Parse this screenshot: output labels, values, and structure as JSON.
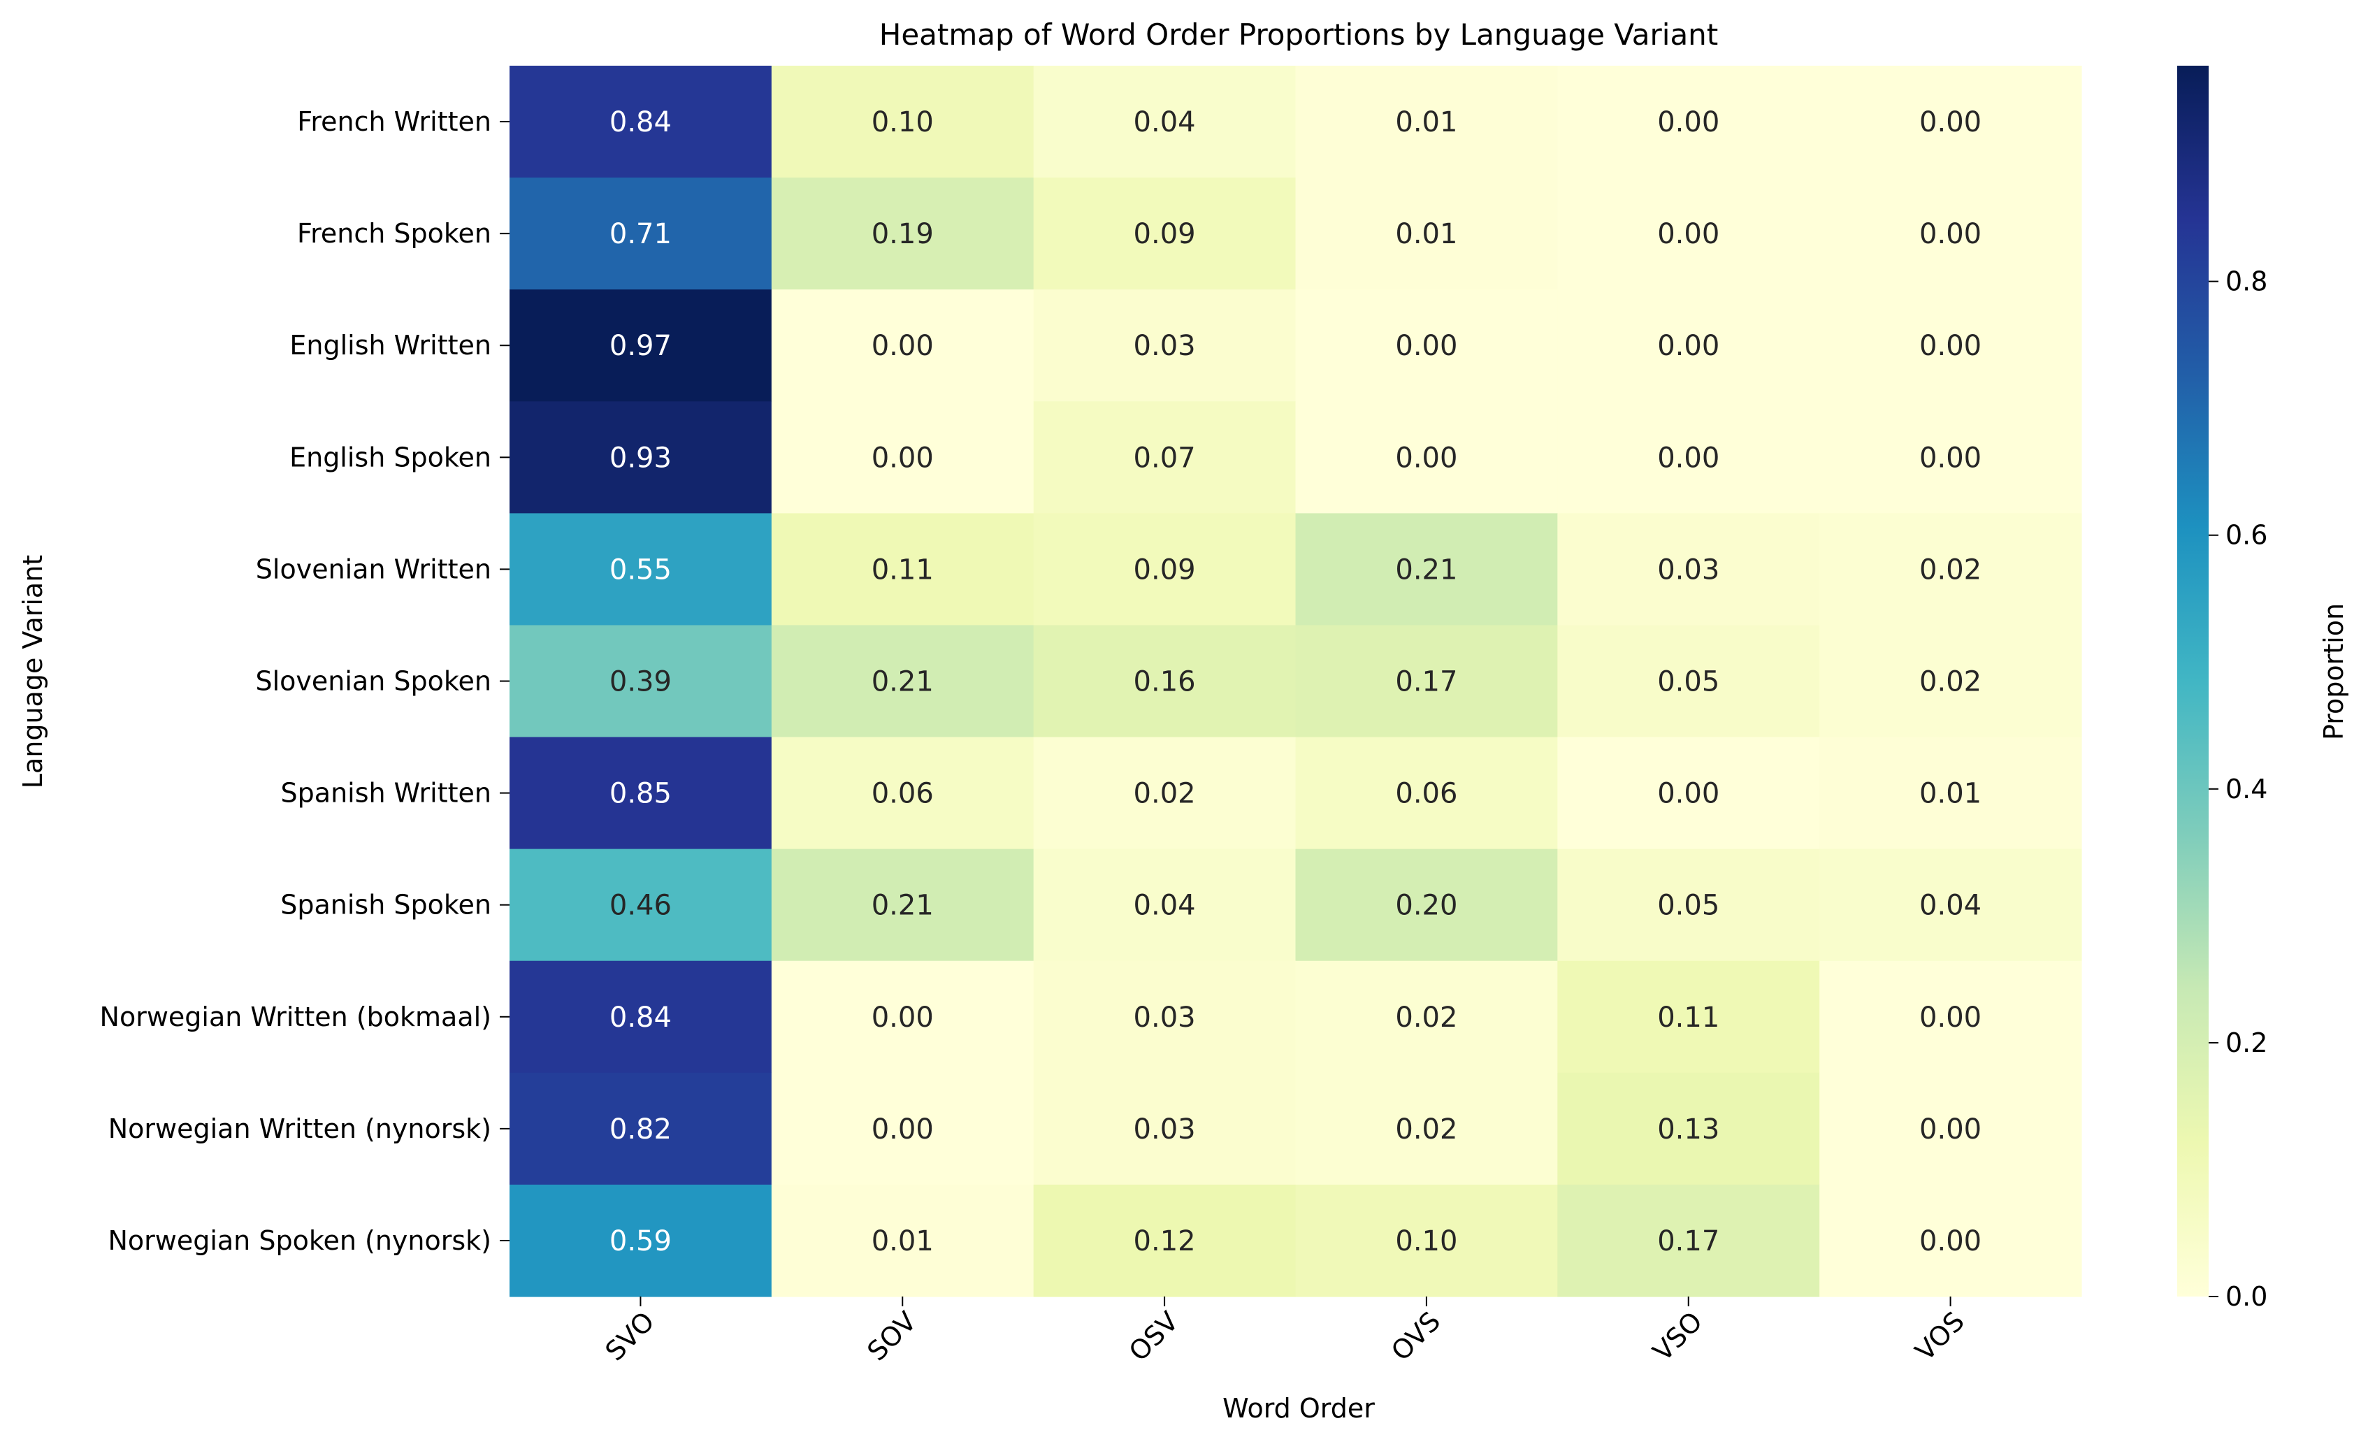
{
  "chart_data": {
    "type": "heatmap",
    "title": "Heatmap of Word Order Proportions by Language Variant",
    "xlabel": "Word Order",
    "ylabel": "Language Variant",
    "x": [
      "SVO",
      "SOV",
      "OSV",
      "OVS",
      "VSO",
      "VOS"
    ],
    "y": [
      "French Written",
      "French Spoken",
      "English Written",
      "English Spoken",
      "Slovenian Written",
      "Slovenian Spoken",
      "Spanish Written",
      "Spanish Spoken",
      "Norwegian Written (bokmaal)",
      "Norwegian Written (nynorsk)",
      "Norwegian Spoken (nynorsk)"
    ],
    "values": [
      [
        0.84,
        0.1,
        0.04,
        0.01,
        0.0,
        0.0
      ],
      [
        0.71,
        0.19,
        0.09,
        0.01,
        0.0,
        0.0
      ],
      [
        0.97,
        0.0,
        0.03,
        0.0,
        0.0,
        0.0
      ],
      [
        0.93,
        0.0,
        0.07,
        0.0,
        0.0,
        0.0
      ],
      [
        0.55,
        0.11,
        0.09,
        0.21,
        0.03,
        0.02
      ],
      [
        0.39,
        0.21,
        0.16,
        0.17,
        0.05,
        0.02
      ],
      [
        0.85,
        0.06,
        0.02,
        0.06,
        0.0,
        0.01
      ],
      [
        0.46,
        0.21,
        0.04,
        0.2,
        0.05,
        0.04
      ],
      [
        0.84,
        0.0,
        0.03,
        0.02,
        0.11,
        0.0
      ],
      [
        0.82,
        0.0,
        0.03,
        0.02,
        0.13,
        0.0
      ],
      [
        0.59,
        0.01,
        0.12,
        0.1,
        0.17,
        0.0
      ]
    ],
    "colorbar": {
      "label": "Proportion",
      "range": [
        0,
        0.97
      ],
      "ticks": [
        "0.0",
        "0.2",
        "0.4",
        "0.6",
        "0.8"
      ]
    },
    "colormap": "YlGnBu",
    "annotation_format": "0.00",
    "grid": false,
    "legend": "colorbar-right"
  }
}
